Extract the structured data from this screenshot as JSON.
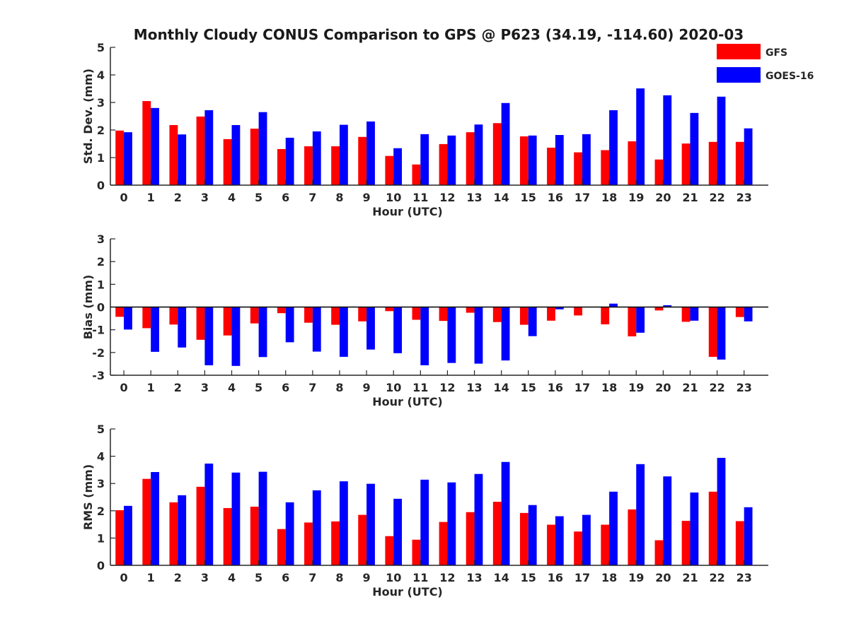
{
  "title": "Monthly Cloudy CONUS Comparison to GPS @ P623 (34.19, -114.60) 2020-03",
  "legend": {
    "placement": "top-right",
    "entries": [
      {
        "label": "GFS",
        "color": "#ff0000"
      },
      {
        "label": "GOES-16",
        "color": "#0000ff"
      }
    ]
  },
  "chart_data": [
    {
      "type": "bar",
      "title": "Monthly Cloudy CONUS Comparison to GPS @ P623 (34.19, -114.60) 2020-03",
      "xlabel": "Hour (UTC)",
      "ylabel": "Std. Dev. (mm)",
      "ylim": [
        0,
        5
      ],
      "yticks": [
        0,
        1,
        2,
        3,
        4,
        5
      ],
      "categories": [
        "0",
        "1",
        "2",
        "3",
        "4",
        "5",
        "6",
        "7",
        "8",
        "9",
        "10",
        "11",
        "12",
        "13",
        "14",
        "15",
        "16",
        "17",
        "18",
        "19",
        "20",
        "21",
        "22",
        "23"
      ],
      "series": [
        {
          "name": "GFS",
          "color": "#ff0000",
          "values": [
            1.98,
            3.05,
            2.18,
            2.49,
            1.67,
            2.05,
            1.31,
            1.41,
            1.41,
            1.75,
            1.06,
            0.75,
            1.49,
            1.92,
            2.25,
            1.77,
            1.36,
            1.19,
            1.27,
            1.59,
            0.93,
            1.51,
            1.57,
            1.57
          ]
        },
        {
          "name": "GOES-16",
          "color": "#0000ff",
          "values": [
            1.92,
            2.8,
            1.84,
            2.72,
            2.18,
            2.65,
            1.72,
            1.95,
            2.19,
            2.31,
            1.34,
            1.85,
            1.8,
            2.2,
            2.98,
            1.8,
            1.82,
            1.85,
            2.72,
            3.51,
            3.26,
            2.62,
            3.21,
            2.06
          ]
        }
      ],
      "grid": false
    },
    {
      "type": "bar",
      "xlabel": "Hour (UTC)",
      "ylabel": "Bias (mm)",
      "ylim": [
        -3,
        3
      ],
      "yticks": [
        -3,
        -2,
        -1,
        0,
        1,
        2,
        3
      ],
      "categories": [
        "0",
        "1",
        "2",
        "3",
        "4",
        "5",
        "6",
        "7",
        "8",
        "9",
        "10",
        "11",
        "12",
        "13",
        "14",
        "15",
        "16",
        "17",
        "18",
        "19",
        "20",
        "21",
        "22",
        "23"
      ],
      "series": [
        {
          "name": "GFS",
          "color": "#ff0000",
          "values": [
            -0.43,
            -0.93,
            -0.77,
            -1.44,
            -1.25,
            -0.72,
            -0.27,
            -0.69,
            -0.78,
            -0.63,
            -0.18,
            -0.56,
            -0.61,
            -0.25,
            -0.66,
            -0.78,
            -0.6,
            -0.37,
            -0.76,
            -1.29,
            -0.15,
            -0.65,
            -2.19,
            -0.44
          ]
        },
        {
          "name": "GOES-16",
          "color": "#0000ff",
          "values": [
            -0.99,
            -1.97,
            -1.78,
            -2.56,
            -2.59,
            -2.2,
            -1.55,
            -1.96,
            -2.19,
            -1.87,
            -2.03,
            -2.56,
            -2.46,
            -2.49,
            -2.35,
            -1.28,
            -0.1,
            0.0,
            0.15,
            -1.13,
            0.08,
            -0.6,
            -2.31,
            -0.63
          ]
        }
      ],
      "grid": false
    },
    {
      "type": "bar",
      "xlabel": "Hour (UTC)",
      "ylabel": "RMS (mm)",
      "ylim": [
        0,
        5
      ],
      "yticks": [
        0,
        1,
        2,
        3,
        4,
        5
      ],
      "categories": [
        "0",
        "1",
        "2",
        "3",
        "4",
        "5",
        "6",
        "7",
        "8",
        "9",
        "10",
        "11",
        "12",
        "13",
        "14",
        "15",
        "16",
        "17",
        "18",
        "19",
        "20",
        "21",
        "22",
        "23"
      ],
      "series": [
        {
          "name": "GFS",
          "color": "#ff0000",
          "values": [
            2.02,
            3.17,
            2.31,
            2.88,
            2.1,
            2.15,
            1.33,
            1.57,
            1.61,
            1.85,
            1.07,
            0.94,
            1.59,
            1.95,
            2.33,
            1.92,
            1.49,
            1.24,
            1.49,
            2.05,
            0.92,
            1.63,
            2.7,
            1.62
          ]
        },
        {
          "name": "GOES-16",
          "color": "#0000ff",
          "values": [
            2.18,
            3.42,
            2.57,
            3.73,
            3.4,
            3.43,
            2.31,
            2.75,
            3.08,
            2.99,
            2.44,
            3.14,
            3.04,
            3.35,
            3.79,
            2.21,
            1.8,
            1.85,
            2.7,
            3.71,
            3.26,
            2.67,
            3.94,
            2.13
          ]
        }
      ],
      "grid": false
    }
  ]
}
